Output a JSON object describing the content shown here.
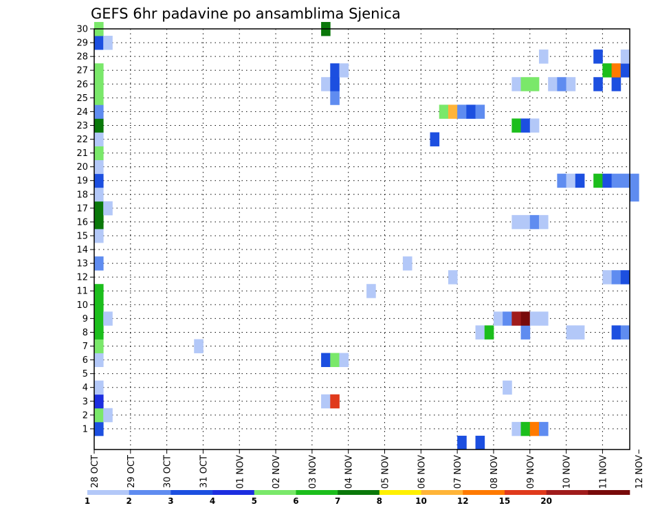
{
  "chart_data": {
    "type": "heatmap",
    "title": "GEFS 6hr padavine po ansamblima Sjenica",
    "xlabel": "",
    "ylabel": "",
    "x_ticks": [
      "28 OCT",
      "29 OCT",
      "30 OCT",
      "31 OCT",
      "01 NOV",
      "02 NOV",
      "03 NOV",
      "04 NOV",
      "05 NOV",
      "06 NOV",
      "07 NOV",
      "08 NOV",
      "09 NOV",
      "10 NOV",
      "11 NOV",
      "12 NOV"
    ],
    "y_ticks": [
      "1",
      "2",
      "3",
      "4",
      "5",
      "6",
      "7",
      "8",
      "9",
      "10",
      "11",
      "12",
      "13",
      "14",
      "15",
      "16",
      "17",
      "18",
      "19",
      "20",
      "21",
      "22",
      "23",
      "24",
      "25",
      "26",
      "27",
      "28",
      "29",
      "30"
    ],
    "x_range_steps": [
      0,
      59
    ],
    "y_range_members": [
      0,
      30
    ],
    "grid": true,
    "colorbar": {
      "labels": [
        "1",
        "2",
        "3",
        "4",
        "5",
        "6",
        "7",
        "8",
        "10",
        "12",
        "15",
        "20"
      ],
      "colors": [
        "#b3c8f8",
        "#5f8cf0",
        "#1c4fe0",
        "#1c2ee0",
        "#7ae86a",
        "#1cbe1c",
        "#0a780a",
        "#fff000",
        "#ffb438",
        "#ff7a00",
        "#e03a1c",
        "#a01c1c",
        "#780a0a"
      ]
    },
    "cells": [
      [
        0,
        1,
        3
      ],
      [
        0,
        2,
        5
      ],
      [
        0,
        3,
        4
      ],
      [
        0,
        4,
        1
      ],
      [
        0,
        6,
        1
      ],
      [
        0,
        7,
        5
      ],
      [
        0,
        8,
        6
      ],
      [
        0,
        9,
        6
      ],
      [
        0,
        10,
        6
      ],
      [
        0,
        11,
        6
      ],
      [
        0,
        13,
        2
      ],
      [
        0,
        15,
        1
      ],
      [
        0,
        16,
        7
      ],
      [
        0,
        17,
        7
      ],
      [
        0,
        18,
        1
      ],
      [
        0,
        19,
        3
      ],
      [
        0,
        20,
        1
      ],
      [
        0,
        21,
        5
      ],
      [
        0,
        22,
        1
      ],
      [
        0,
        23,
        7
      ],
      [
        0,
        24,
        2
      ],
      [
        0,
        25,
        5
      ],
      [
        0,
        26,
        5
      ],
      [
        0,
        27,
        5
      ],
      [
        0,
        29,
        3
      ],
      [
        0,
        30,
        5
      ],
      [
        1,
        2,
        1
      ],
      [
        1,
        9,
        1
      ],
      [
        1,
        17,
        1
      ],
      [
        1,
        29,
        1
      ],
      [
        11,
        7,
        1
      ],
      [
        25,
        3,
        1
      ],
      [
        25,
        6,
        3
      ],
      [
        25,
        26,
        1
      ],
      [
        25,
        30,
        7
      ],
      [
        26,
        3,
        11
      ],
      [
        26,
        6,
        5
      ],
      [
        26,
        25,
        2
      ],
      [
        26,
        26,
        3
      ],
      [
        26,
        27,
        3
      ],
      [
        27,
        6,
        1
      ],
      [
        27,
        27,
        1
      ],
      [
        30,
        11,
        1
      ],
      [
        34,
        13,
        1
      ],
      [
        37,
        22,
        3
      ],
      [
        38,
        24,
        5
      ],
      [
        39,
        12,
        1
      ],
      [
        39,
        24,
        9
      ],
      [
        40,
        0,
        3
      ],
      [
        40,
        24,
        2
      ],
      [
        41,
        24,
        3
      ],
      [
        42,
        0,
        3
      ],
      [
        42,
        8,
        1
      ],
      [
        42,
        24,
        2
      ],
      [
        43,
        8,
        6
      ],
      [
        44,
        9,
        1
      ],
      [
        45,
        4,
        1
      ],
      [
        45,
        9,
        2
      ],
      [
        46,
        1,
        1
      ],
      [
        46,
        9,
        12
      ],
      [
        46,
        16,
        1
      ],
      [
        46,
        23,
        6
      ],
      [
        46,
        26,
        1
      ],
      [
        47,
        1,
        6
      ],
      [
        47,
        8,
        2
      ],
      [
        47,
        9,
        13
      ],
      [
        47,
        16,
        1
      ],
      [
        47,
        23,
        3
      ],
      [
        47,
        26,
        5
      ],
      [
        48,
        1,
        10
      ],
      [
        48,
        9,
        1
      ],
      [
        48,
        16,
        2
      ],
      [
        48,
        23,
        1
      ],
      [
        48,
        26,
        5
      ],
      [
        49,
        1,
        2
      ],
      [
        49,
        9,
        1
      ],
      [
        49,
        16,
        1
      ],
      [
        49,
        28,
        1
      ],
      [
        50,
        26,
        1
      ],
      [
        51,
        19,
        2
      ],
      [
        51,
        26,
        2
      ],
      [
        52,
        8,
        1
      ],
      [
        52,
        19,
        1
      ],
      [
        52,
        26,
        1
      ],
      [
        53,
        8,
        1
      ],
      [
        53,
        19,
        3
      ],
      [
        55,
        19,
        6
      ],
      [
        55,
        26,
        3
      ],
      [
        55,
        28,
        3
      ],
      [
        56,
        12,
        1
      ],
      [
        56,
        19,
        3
      ],
      [
        56,
        27,
        6
      ],
      [
        57,
        8,
        3
      ],
      [
        57,
        12,
        2
      ],
      [
        57,
        19,
        2
      ],
      [
        57,
        26,
        3
      ],
      [
        57,
        27,
        10
      ],
      [
        58,
        8,
        2
      ],
      [
        58,
        12,
        3
      ],
      [
        58,
        19,
        2
      ],
      [
        58,
        27,
        3
      ],
      [
        58,
        28,
        1
      ],
      [
        59,
        18,
        2
      ],
      [
        59,
        19,
        2
      ]
    ]
  }
}
